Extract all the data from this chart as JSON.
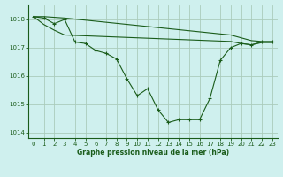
{
  "background_color": "#cff0ee",
  "plot_bg_color": "#cff0ee",
  "grid_color": "#aaccbb",
  "line_color": "#1a5c1a",
  "title": "Graphe pression niveau de la mer (hPa)",
  "xlim": [
    -0.5,
    23.5
  ],
  "ylim": [
    1013.8,
    1018.5
  ],
  "yticks": [
    1014,
    1015,
    1016,
    1017,
    1018
  ],
  "xticks": [
    0,
    1,
    2,
    3,
    4,
    5,
    6,
    7,
    8,
    9,
    10,
    11,
    12,
    13,
    14,
    15,
    16,
    17,
    18,
    19,
    20,
    21,
    22,
    23
  ],
  "series_main": {
    "x": [
      0,
      1,
      2,
      3,
      4,
      5,
      6,
      7,
      8,
      9,
      10,
      11,
      12,
      13,
      14,
      15,
      16,
      17,
      18,
      19,
      20,
      21,
      22,
      23
    ],
    "y": [
      1018.1,
      1018.05,
      1017.85,
      1018.0,
      1017.2,
      1017.15,
      1016.9,
      1016.8,
      1016.6,
      1015.9,
      1015.3,
      1015.55,
      1014.8,
      1014.35,
      1014.45,
      1014.45,
      1014.45,
      1015.2,
      1016.55,
      1017.0,
      1017.15,
      1017.1,
      1017.2,
      1017.2
    ]
  },
  "series_upper": {
    "x": [
      0,
      1,
      3,
      19,
      20,
      21,
      22,
      23
    ],
    "y": [
      1018.1,
      1018.1,
      1018.05,
      1017.45,
      1017.35,
      1017.25,
      1017.22,
      1017.22
    ]
  },
  "series_mid": {
    "x": [
      0,
      1,
      2,
      3,
      19,
      20,
      21,
      22,
      23
    ],
    "y": [
      1018.1,
      1017.82,
      1017.62,
      1017.45,
      1017.22,
      1017.15,
      1017.1,
      1017.18,
      1017.18
    ]
  }
}
